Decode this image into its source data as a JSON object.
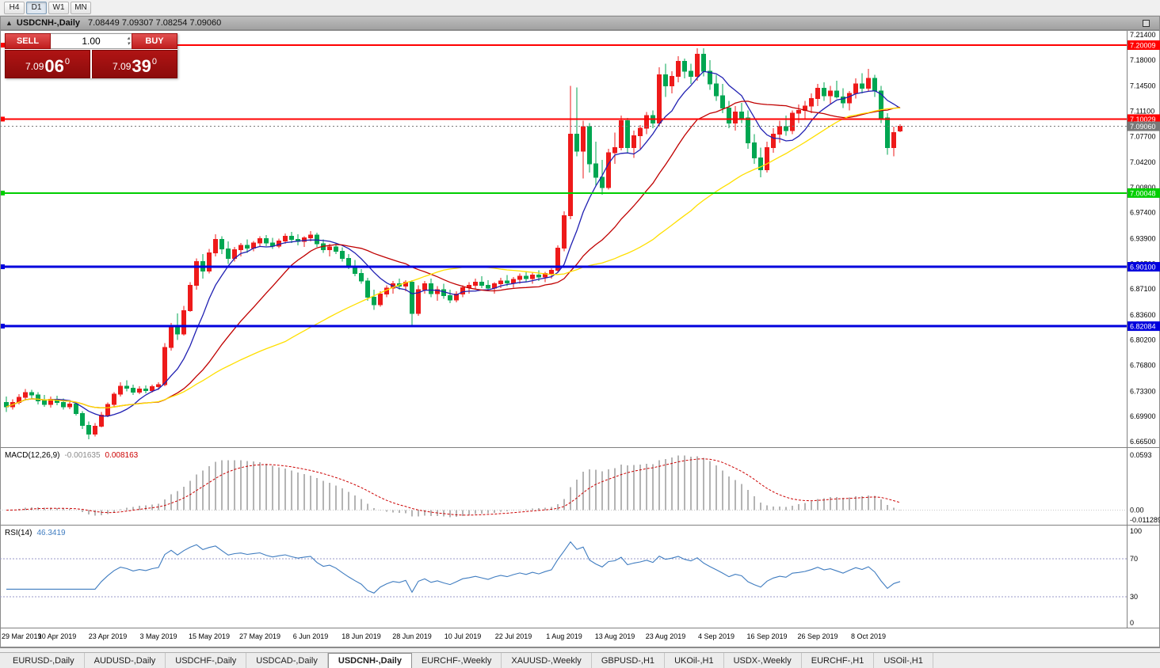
{
  "toolbar": {
    "timeframes": [
      "H4",
      "D1",
      "W1",
      "MN"
    ],
    "active_timeframe": "D1"
  },
  "titlebar": {
    "collapse_icon": "▲",
    "symbol_title": "USDCNH-,Daily",
    "ohlc_text": "7.08449 7.09307 7.08254 7.09060"
  },
  "trade_panel": {
    "sell_label": "SELL",
    "buy_label": "BUY",
    "volume": "1.00",
    "spin_up": "▴",
    "spin_down": "▾",
    "sell": {
      "base": "7.09",
      "big": "06",
      "sup": "0"
    },
    "buy": {
      "base": "7.09",
      "big": "39",
      "sup": "0"
    }
  },
  "price_axis_labels": [
    "7.21400",
    "7.18000",
    "7.14500",
    "7.11100",
    "7.07700",
    "7.04200",
    "7.00800",
    "6.97400",
    "6.93900",
    "6.90500",
    "6.87100",
    "6.83600",
    "6.80200",
    "6.76800",
    "6.73300",
    "6.69900",
    "6.66500"
  ],
  "hlines": [
    {
      "label": "7.20009",
      "value": 7.20009,
      "color": "#ff0000",
      "width": 2
    },
    {
      "label": "7.10029",
      "value": 7.10029,
      "color": "#ff0000",
      "width": 2
    },
    {
      "label": "7.00048",
      "value": 7.00048,
      "color": "#00ce00",
      "width": 2
    },
    {
      "label": "6.90100",
      "value": 6.901,
      "color": "#0000dd",
      "width": 3
    },
    {
      "label": "6.82084",
      "value": 6.82084,
      "color": "#0000dd",
      "width": 3
    }
  ],
  "bid_line": {
    "label": "7.09060",
    "value": 7.0906,
    "color": "#787878"
  },
  "macd_panel": {
    "name": "MACD(12,26,9)",
    "value_main": "-0.001635",
    "value_signal": "0.008163",
    "axis_top": "0.0593",
    "axis_zero": "0.00",
    "axis_bottom": "-0.011289",
    "histogram_color": "#b4b4b4",
    "signal_color": "#cc0000"
  },
  "rsi_panel": {
    "name": "RSI(14)",
    "value": "46.3419",
    "axis": [
      "100",
      "70",
      "30",
      "0"
    ],
    "levels": [
      70,
      30
    ],
    "line_color": "#3f7cc0"
  },
  "tabs": [
    "EURUSD-,Daily",
    "AUDUSD-,Daily",
    "USDCHF-,Daily",
    "USDCAD-,Daily",
    "USDCNH-,Daily",
    "EURCHF-,Weekly",
    "XAUUSD-,Weekly",
    "GBPUSD-,H1",
    "UKOil-,H1",
    "USDX-,Weekly",
    "EURCHF-,H1",
    "USOil-,H1"
  ],
  "active_tab": "USDCNH-,Daily",
  "chart_data": {
    "type": "candlestick",
    "symbol": "USDCNH-,Daily",
    "price_range": [
      6.665,
      7.214
    ],
    "up_color": "#ee1a1a",
    "down_color": "#00a651",
    "ma": [
      {
        "period": 8,
        "color": "#2020b2"
      },
      {
        "period": 21,
        "color": "#c00000"
      },
      {
        "period": 45,
        "color": "#ffdf00"
      }
    ],
    "x_axis": [
      {
        "label": "29 Mar 2019",
        "index": 0
      },
      {
        "label": "10 Apr 2019",
        "index": 8
      },
      {
        "label": "23 Apr 2019",
        "index": 16
      },
      {
        "label": "3 May 2019",
        "index": 24
      },
      {
        "label": "15 May 2019",
        "index": 32
      },
      {
        "label": "27 May 2019",
        "index": 40
      },
      {
        "label": "6 Jun 2019",
        "index": 48
      },
      {
        "label": "18 Jun 2019",
        "index": 56
      },
      {
        "label": "28 Jun 2019",
        "index": 64
      },
      {
        "label": "10 Jul 2019",
        "index": 72
      },
      {
        "label": "22 Jul 2019",
        "index": 80
      },
      {
        "label": "1 Aug 2019",
        "index": 88
      },
      {
        "label": "13 Aug 2019",
        "index": 96
      },
      {
        "label": "23 Aug 2019",
        "index": 104
      },
      {
        "label": "4 Sep 2019",
        "index": 112
      },
      {
        "label": "16 Sep 2019",
        "index": 120
      },
      {
        "label": "26 Sep 2019",
        "index": 128
      },
      {
        "label": "8 Oct 2019",
        "index": 136
      }
    ],
    "candles": [
      [
        6.718,
        6.726,
        6.705,
        6.712
      ],
      [
        6.712,
        6.722,
        6.708,
        6.718
      ],
      [
        6.718,
        6.729,
        6.715,
        6.725
      ],
      [
        6.725,
        6.736,
        6.722,
        6.731
      ],
      [
        6.731,
        6.735,
        6.723,
        6.728
      ],
      [
        6.728,
        6.732,
        6.715,
        6.72
      ],
      [
        6.72,
        6.728,
        6.712,
        6.715
      ],
      [
        6.715,
        6.726,
        6.711,
        6.722
      ],
      [
        6.722,
        6.727,
        6.714,
        6.718
      ],
      [
        6.718,
        6.723,
        6.708,
        6.712
      ],
      [
        6.712,
        6.721,
        6.709,
        6.716
      ],
      [
        6.716,
        6.718,
        6.7,
        6.703
      ],
      [
        6.703,
        6.706,
        6.682,
        6.687
      ],
      [
        6.687,
        6.692,
        6.668,
        6.675
      ],
      [
        6.675,
        6.69,
        6.672,
        6.686
      ],
      [
        6.686,
        6.705,
        6.684,
        6.701
      ],
      [
        6.701,
        6.718,
        6.698,
        6.715
      ],
      [
        6.715,
        6.732,
        6.712,
        6.729
      ],
      [
        6.729,
        6.745,
        6.726,
        6.74
      ],
      [
        6.74,
        6.748,
        6.733,
        6.737
      ],
      [
        6.737,
        6.742,
        6.728,
        6.732
      ],
      [
        6.732,
        6.74,
        6.729,
        6.736
      ],
      [
        6.736,
        6.741,
        6.73,
        6.734
      ],
      [
        6.734,
        6.742,
        6.731,
        6.739
      ],
      [
        6.739,
        6.745,
        6.735,
        6.742
      ],
      [
        6.742,
        6.798,
        6.74,
        6.792
      ],
      [
        6.792,
        6.825,
        6.788,
        6.82
      ],
      [
        6.82,
        6.838,
        6.802,
        6.81
      ],
      [
        6.81,
        6.848,
        6.808,
        6.842
      ],
      [
        6.842,
        6.88,
        6.84,
        6.876
      ],
      [
        6.876,
        6.912,
        6.87,
        6.908
      ],
      [
        6.908,
        6.918,
        6.885,
        6.895
      ],
      [
        6.895,
        6.925,
        6.892,
        6.92
      ],
      [
        6.92,
        6.945,
        6.915,
        6.938
      ],
      [
        6.938,
        6.942,
        6.918,
        6.925
      ],
      [
        6.925,
        6.935,
        6.905,
        6.912
      ],
      [
        6.912,
        6.928,
        6.908,
        6.924
      ],
      [
        6.924,
        6.933,
        6.915,
        6.93
      ],
      [
        6.93,
        6.938,
        6.92,
        6.926
      ],
      [
        6.926,
        6.936,
        6.922,
        6.933
      ],
      [
        6.933,
        6.942,
        6.928,
        6.939
      ],
      [
        6.939,
        6.944,
        6.929,
        6.933
      ],
      [
        6.933,
        6.94,
        6.925,
        6.929
      ],
      [
        6.929,
        6.939,
        6.926,
        6.936
      ],
      [
        6.936,
        6.946,
        6.932,
        6.942
      ],
      [
        6.942,
        6.948,
        6.933,
        6.938
      ],
      [
        6.938,
        6.945,
        6.93,
        6.935
      ],
      [
        6.935,
        6.942,
        6.928,
        6.94
      ],
      [
        6.94,
        6.949,
        6.935,
        6.944
      ],
      [
        6.944,
        6.947,
        6.928,
        6.932
      ],
      [
        6.932,
        6.938,
        6.92,
        6.924
      ],
      [
        6.924,
        6.932,
        6.915,
        6.928
      ],
      [
        6.928,
        6.933,
        6.918,
        6.922
      ],
      [
        6.922,
        6.927,
        6.908,
        6.912
      ],
      [
        6.912,
        6.918,
        6.898,
        6.902
      ],
      [
        6.902,
        6.91,
        6.888,
        6.892
      ],
      [
        6.892,
        6.898,
        6.878,
        6.882
      ],
      [
        6.882,
        6.886,
        6.855,
        6.86
      ],
      [
        6.86,
        6.87,
        6.843,
        6.85
      ],
      [
        6.85,
        6.868,
        6.847,
        6.864
      ],
      [
        6.864,
        6.876,
        6.86,
        6.872
      ],
      [
        6.872,
        6.882,
        6.865,
        6.878
      ],
      [
        6.878,
        6.885,
        6.87,
        6.875
      ],
      [
        6.875,
        6.883,
        6.868,
        6.88
      ],
      [
        6.88,
        6.883,
        6.822,
        6.838
      ],
      [
        6.838,
        6.876,
        6.835,
        6.87
      ],
      [
        6.87,
        6.882,
        6.865,
        6.878
      ],
      [
        6.878,
        6.885,
        6.86,
        6.865
      ],
      [
        6.865,
        6.875,
        6.855,
        6.87
      ],
      [
        6.87,
        6.878,
        6.858,
        6.862
      ],
      [
        6.862,
        6.87,
        6.852,
        6.856
      ],
      [
        6.856,
        6.868,
        6.853,
        6.864
      ],
      [
        6.864,
        6.876,
        6.86,
        6.873
      ],
      [
        6.873,
        6.88,
        6.865,
        6.876
      ],
      [
        6.876,
        6.885,
        6.87,
        6.88
      ],
      [
        6.88,
        6.888,
        6.872,
        6.876
      ],
      [
        6.876,
        6.883,
        6.868,
        6.872
      ],
      [
        6.872,
        6.88,
        6.865,
        6.878
      ],
      [
        6.878,
        6.886,
        6.872,
        6.882
      ],
      [
        6.882,
        6.89,
        6.875,
        6.879
      ],
      [
        6.879,
        6.887,
        6.873,
        6.884
      ],
      [
        6.884,
        6.892,
        6.878,
        6.888
      ],
      [
        6.888,
        6.895,
        6.88,
        6.885
      ],
      [
        6.885,
        6.893,
        6.878,
        6.89
      ],
      [
        6.89,
        6.896,
        6.882,
        6.887
      ],
      [
        6.887,
        6.894,
        6.88,
        6.892
      ],
      [
        6.892,
        6.899,
        6.885,
        6.896
      ],
      [
        6.896,
        6.93,
        6.893,
        6.926
      ],
      [
        6.926,
        6.976,
        6.922,
        6.97
      ],
      [
        6.97,
        7.145,
        6.965,
        7.08
      ],
      [
        7.08,
        7.143,
        7.05,
        7.057
      ],
      [
        7.057,
        7.098,
        7.02,
        7.09
      ],
      [
        7.09,
        7.095,
        7.028,
        7.04
      ],
      [
        7.04,
        7.07,
        7.01,
        7.022
      ],
      [
        7.022,
        7.045,
        6.998,
        7.008
      ],
      [
        7.008,
        7.06,
        7.005,
        7.055
      ],
      [
        7.055,
        7.082,
        7.04,
        7.062
      ],
      [
        7.062,
        7.105,
        7.058,
        7.098
      ],
      [
        7.098,
        7.102,
        7.055,
        7.062
      ],
      [
        7.062,
        7.085,
        7.048,
        7.078
      ],
      [
        7.078,
        7.092,
        7.06,
        7.088
      ],
      [
        7.088,
        7.11,
        7.08,
        7.105
      ],
      [
        7.105,
        7.112,
        7.088,
        7.095
      ],
      [
        7.095,
        7.17,
        7.09,
        7.16
      ],
      [
        7.16,
        7.175,
        7.13,
        7.145
      ],
      [
        7.145,
        7.165,
        7.135,
        7.158
      ],
      [
        7.158,
        7.185,
        7.15,
        7.178
      ],
      [
        7.178,
        7.182,
        7.155,
        7.165
      ],
      [
        7.165,
        7.175,
        7.148,
        7.158
      ],
      [
        7.158,
        7.196,
        7.152,
        7.188
      ],
      [
        7.188,
        7.196,
        7.158,
        7.165
      ],
      [
        7.165,
        7.18,
        7.14,
        7.148
      ],
      [
        7.148,
        7.16,
        7.125,
        7.132
      ],
      [
        7.132,
        7.148,
        7.108,
        7.115
      ],
      [
        7.115,
        7.125,
        7.088,
        7.095
      ],
      [
        7.095,
        7.118,
        7.085,
        7.11
      ],
      [
        7.11,
        7.122,
        7.095,
        7.102
      ],
      [
        7.102,
        7.112,
        7.06,
        7.068
      ],
      [
        7.068,
        7.08,
        7.04,
        7.048
      ],
      [
        7.048,
        7.062,
        7.022,
        7.032
      ],
      [
        7.032,
        7.07,
        7.028,
        7.062
      ],
      [
        7.062,
        7.088,
        7.055,
        7.08
      ],
      [
        7.08,
        7.098,
        7.068,
        7.09
      ],
      [
        7.09,
        7.105,
        7.078,
        7.085
      ],
      [
        7.085,
        7.112,
        7.08,
        7.108
      ],
      [
        7.108,
        7.12,
        7.095,
        7.112
      ],
      [
        7.112,
        7.125,
        7.1,
        7.118
      ],
      [
        7.118,
        7.135,
        7.108,
        7.128
      ],
      [
        7.128,
        7.148,
        7.118,
        7.142
      ],
      [
        7.142,
        7.15,
        7.125,
        7.132
      ],
      [
        7.132,
        7.145,
        7.12,
        7.138
      ],
      [
        7.138,
        7.152,
        7.128,
        7.13
      ],
      [
        7.13,
        7.142,
        7.115,
        7.122
      ],
      [
        7.122,
        7.138,
        7.112,
        7.135
      ],
      [
        7.135,
        7.155,
        7.128,
        7.148
      ],
      [
        7.148,
        7.162,
        7.135,
        7.142
      ],
      [
        7.142,
        7.168,
        7.138,
        7.155
      ],
      [
        7.155,
        7.16,
        7.13,
        7.138
      ],
      [
        7.138,
        7.145,
        7.095,
        7.102
      ],
      [
        7.102,
        7.108,
        7.052,
        7.062
      ],
      [
        7.062,
        7.09,
        7.05,
        7.082
      ],
      [
        7.08449,
        7.09307,
        7.08254,
        7.0906
      ]
    ]
  }
}
